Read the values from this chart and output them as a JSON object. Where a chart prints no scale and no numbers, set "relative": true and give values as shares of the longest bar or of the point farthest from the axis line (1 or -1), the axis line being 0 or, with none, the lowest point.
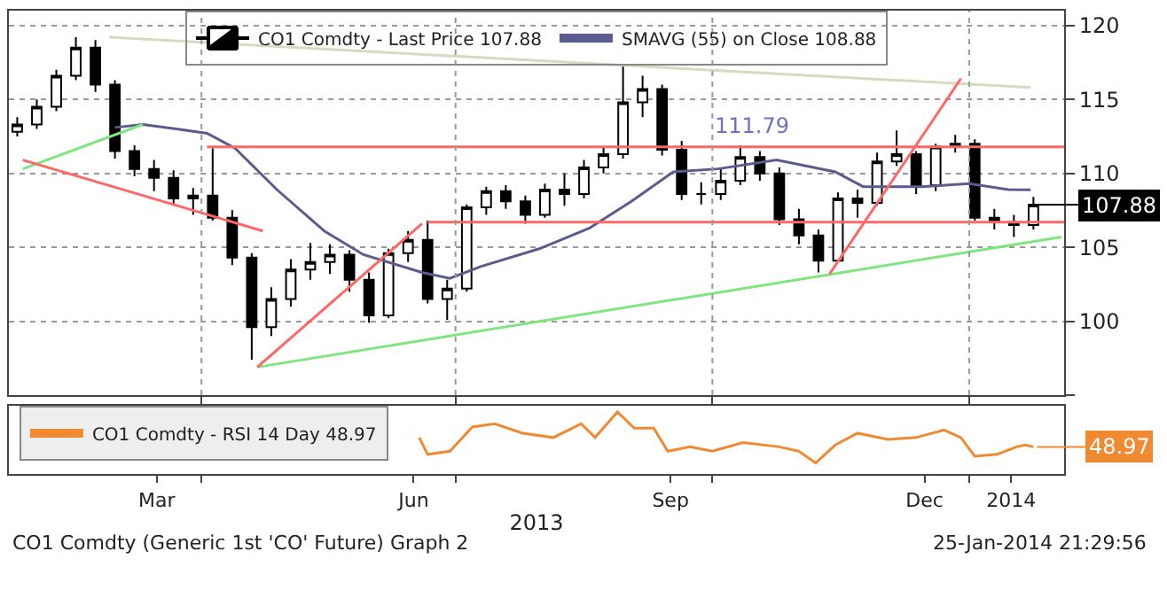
{
  "chart_data": [
    {
      "type": "candlestick",
      "legend": "top",
      "grid": true,
      "tick_labels": "y",
      "xlim": [
        "2013-01-22",
        "2014-02-04"
      ],
      "xticks": [
        {
          "value": "2013-04-01",
          "label": null
        },
        {
          "value": "2013-07-01",
          "label": null
        },
        {
          "value": "2013-10-01",
          "label": null
        },
        {
          "value": "2014-01-01",
          "label": null
        }
      ],
      "ylim": [
        95,
        121
      ],
      "yticks": [
        {
          "value": 95,
          "label": null
        },
        100,
        105,
        110,
        115,
        120
      ],
      "series": [
        {
          "name": "CO1 Comdty - Last Price 107.88",
          "type": "candlestick",
          "color": "#000000",
          "x": [
            "2013-01-25",
            "2013-02-01",
            "2013-02-08",
            "2013-02-15",
            "2013-02-22",
            "2013-03-01",
            "2013-03-08",
            "2013-03-15",
            "2013-03-22",
            "2013-03-29",
            "2013-04-05",
            "2013-04-12",
            "2013-04-19",
            "2013-04-26",
            "2013-05-03",
            "2013-05-10",
            "2013-05-17",
            "2013-05-24",
            "2013-05-31",
            "2013-06-07",
            "2013-06-14",
            "2013-06-21",
            "2013-06-28",
            "2013-07-05",
            "2013-07-12",
            "2013-07-19",
            "2013-07-26",
            "2013-08-02",
            "2013-08-09",
            "2013-08-16",
            "2013-08-23",
            "2013-08-30",
            "2013-09-06",
            "2013-09-13",
            "2013-09-20",
            "2013-09-27",
            "2013-10-04",
            "2013-10-11",
            "2013-10-18",
            "2013-10-25",
            "2013-11-01",
            "2013-11-08",
            "2013-11-15",
            "2013-11-22",
            "2013-11-29",
            "2013-12-06",
            "2013-12-13",
            "2013-12-20",
            "2013-12-27",
            "2014-01-03",
            "2014-01-10",
            "2014-01-17",
            "2014-01-24"
          ],
          "ohlc": [
            [
              112.8,
              113.8,
              112.5,
              113.3
            ],
            [
              113.3,
              115.0,
              113.0,
              114.5
            ],
            [
              114.5,
              117.0,
              114.2,
              116.6
            ],
            [
              116.6,
              119.2,
              116.3,
              118.5
            ],
            [
              118.5,
              119.0,
              115.5,
              116.0
            ],
            [
              116.0,
              116.3,
              111.0,
              111.5
            ],
            [
              111.5,
              111.9,
              109.8,
              110.3
            ],
            [
              110.3,
              110.9,
              108.8,
              109.7
            ],
            [
              109.7,
              110.2,
              107.8,
              108.3
            ],
            [
              108.3,
              109.0,
              107.2,
              108.5
            ],
            [
              108.5,
              111.7,
              106.8,
              107.0
            ],
            [
              107.0,
              107.5,
              103.8,
              104.3
            ],
            [
              104.3,
              104.6,
              97.4,
              99.6
            ],
            [
              99.6,
              102.3,
              99.0,
              101.5
            ],
            [
              101.5,
              104.2,
              101.0,
              103.5
            ],
            [
              103.5,
              105.3,
              102.8,
              104.0
            ],
            [
              104.0,
              105.2,
              103.2,
              104.5
            ],
            [
              104.5,
              104.8,
              102.0,
              102.8
            ],
            [
              102.8,
              103.3,
              99.9,
              100.4
            ],
            [
              100.4,
              104.9,
              100.2,
              104.6
            ],
            [
              104.6,
              106.1,
              104.0,
              105.5
            ],
            [
              105.5,
              106.8,
              101.2,
              101.5
            ],
            [
              101.5,
              102.8,
              100.1,
              102.2
            ],
            [
              102.2,
              107.9,
              102.0,
              107.7
            ],
            [
              107.7,
              109.1,
              107.2,
              108.8
            ],
            [
              108.8,
              109.2,
              107.6,
              108.1
            ],
            [
              108.1,
              108.5,
              106.6,
              107.2
            ],
            [
              107.2,
              109.3,
              107.0,
              108.9
            ],
            [
              108.9,
              110.0,
              107.8,
              108.6
            ],
            [
              108.6,
              110.9,
              108.3,
              110.4
            ],
            [
              110.4,
              111.8,
              110.0,
              111.3
            ],
            [
              111.3,
              117.3,
              111.0,
              114.8
            ],
            [
              114.8,
              116.6,
              113.8,
              115.7
            ],
            [
              115.7,
              116.0,
              111.2,
              111.6
            ],
            [
              111.6,
              112.2,
              108.2,
              108.6
            ],
            [
              108.6,
              109.4,
              107.9,
              108.6
            ],
            [
              108.6,
              110.3,
              108.2,
              109.5
            ],
            [
              109.5,
              111.9,
              109.2,
              111.1
            ],
            [
              111.1,
              111.5,
              109.5,
              110.0
            ],
            [
              110.0,
              110.4,
              106.5,
              106.9
            ],
            [
              106.9,
              107.6,
              105.2,
              105.8
            ],
            [
              105.8,
              106.2,
              103.3,
              104.1
            ],
            [
              104.1,
              108.7,
              104.0,
              108.3
            ],
            [
              108.3,
              108.9,
              107.0,
              108.0
            ],
            [
              108.0,
              111.4,
              107.8,
              110.8
            ],
            [
              110.8,
              112.9,
              110.5,
              111.3
            ],
            [
              111.3,
              111.5,
              108.6,
              109.2
            ],
            [
              109.2,
              112.0,
              108.8,
              111.8
            ],
            [
              111.8,
              112.6,
              111.4,
              112.0
            ],
            [
              112.0,
              112.3,
              106.8,
              107.0
            ],
            [
              107.0,
              107.6,
              106.2,
              106.7
            ],
            [
              106.7,
              107.2,
              105.7,
              106.5
            ],
            [
              106.5,
              108.4,
              106.2,
              107.88
            ]
          ]
        },
        {
          "name": "SMAVG (55) on Close 108.88",
          "type": "line",
          "color": "#5b5b8f",
          "x": [
            "2013-03-01",
            "2013-03-11",
            "2013-03-23",
            "2013-04-03",
            "2013-04-13",
            "2013-04-28",
            "2013-05-15",
            "2013-05-29",
            "2013-06-19",
            "2013-06-29",
            "2013-07-10",
            "2013-07-31",
            "2013-08-18",
            "2013-09-02",
            "2013-09-17",
            "2013-10-03",
            "2013-10-24",
            "2013-11-14",
            "2013-11-24",
            "2013-12-15",
            "2014-01-01",
            "2014-01-15",
            "2014-01-23"
          ],
          "values": [
            113.1,
            113.3,
            113.0,
            112.7,
            111.7,
            108.9,
            106.1,
            104.5,
            103.3,
            102.9,
            103.7,
            104.9,
            106.3,
            108.1,
            110.1,
            110.3,
            110.9,
            110.1,
            109.1,
            109.1,
            109.3,
            108.9,
            108.88
          ]
        },
        {
          "type": "line",
          "color": "#d9d9c0",
          "x": [
            "2013-02-27",
            "2014-01-23"
          ],
          "values": [
            119.2,
            115.8
          ]
        },
        {
          "type": "line",
          "color": "#7ee67e",
          "x": [
            "2013-01-27",
            "2013-03-11"
          ],
          "values": [
            110.3,
            113.3
          ]
        },
        {
          "type": "line",
          "color": "#7ee67e",
          "x": [
            "2013-04-21",
            "2014-02-03"
          ],
          "values": [
            96.9,
            105.7
          ]
        },
        {
          "type": "line",
          "color": "#ff6666",
          "x": [
            "2013-01-27",
            "2013-04-23"
          ],
          "values": [
            110.9,
            106.1
          ]
        },
        {
          "type": "line",
          "color": "#ff6666",
          "x": [
            "2013-04-21",
            "2013-06-19"
          ],
          "values": [
            96.9,
            106.6
          ]
        },
        {
          "type": "line",
          "color": "#ff6666",
          "x": [
            "2013-11-12",
            "2013-12-29"
          ],
          "values": [
            103.2,
            116.4
          ]
        },
        {
          "type": "line",
          "color": "#ff6666",
          "x": [
            "2013-04-03",
            "2014-02-04"
          ],
          "values": [
            111.79,
            111.79
          ]
        },
        {
          "type": "line",
          "color": "#ff6666",
          "x": [
            "2013-06-21",
            "2014-02-04"
          ],
          "values": [
            106.7,
            106.7
          ]
        }
      ],
      "annotations": [
        {
          "text": "111.79",
          "x": "2013-10-15",
          "y": 111.79
        },
        {
          "text": "107.88",
          "x": "2014-01-24",
          "y": 107.88
        }
      ]
    },
    {
      "type": "line",
      "relative": true,
      "legend": "top left",
      "tick_labels": "x",
      "xlabel": "2013",
      "xlim": [
        "2013-01-22",
        "2014-02-04"
      ],
      "xticks": [
        {
          "value": "2013-03-16",
          "label": "Mar"
        },
        {
          "value": "2013-04-01",
          "label": null
        },
        {
          "value": "2013-06-16",
          "label": "Jun"
        },
        {
          "value": "2013-07-01",
          "label": null
        },
        {
          "value": "2013-09-16",
          "label": "Sep"
        },
        {
          "value": "2013-10-01",
          "label": null
        },
        {
          "value": "2013-12-16",
          "label": "Dec"
        },
        {
          "value": "2014-01-01",
          "label": null
        },
        {
          "value": "2014-01-16",
          "label": "2014"
        }
      ],
      "series": [
        {
          "name": "CO1 Comdty - RSI 14 Day 48.97",
          "color": "#f08a30",
          "x": [
            "2013-06-18",
            "2013-06-21",
            "2013-06-29",
            "2013-07-07",
            "2013-07-15",
            "2013-07-25",
            "2013-08-05",
            "2013-08-15",
            "2013-08-20",
            "2013-08-28",
            "2013-09-03",
            "2013-09-10",
            "2013-09-15",
            "2013-09-23",
            "2013-10-01",
            "2013-10-12",
            "2013-10-25",
            "2013-11-01",
            "2013-11-07",
            "2013-11-14",
            "2013-11-22",
            "2013-12-03",
            "2013-12-13",
            "2013-12-23",
            "2013-12-29",
            "2014-01-03",
            "2014-01-11",
            "2014-01-18",
            "2014-01-21",
            "2014-01-24"
          ],
          "values": [
            0.59,
            0.32,
            0.37,
            0.76,
            0.81,
            0.66,
            0.59,
            0.81,
            0.59,
            1.0,
            0.74,
            0.74,
            0.37,
            0.44,
            0.37,
            0.51,
            0.44,
            0.37,
            0.18,
            0.47,
            0.66,
            0.56,
            0.59,
            0.71,
            0.59,
            0.29,
            0.32,
            0.44,
            0.47,
            0.44
          ]
        }
      ],
      "annotations": [
        {
          "text": "48.97",
          "x": "2014-01-24",
          "y": 0.44
        },
        "CO1 Comdty (Generic 1st 'CO' Future) Graph 2",
        "25-Jan-2014 21:29:56"
      ]
    }
  ]
}
